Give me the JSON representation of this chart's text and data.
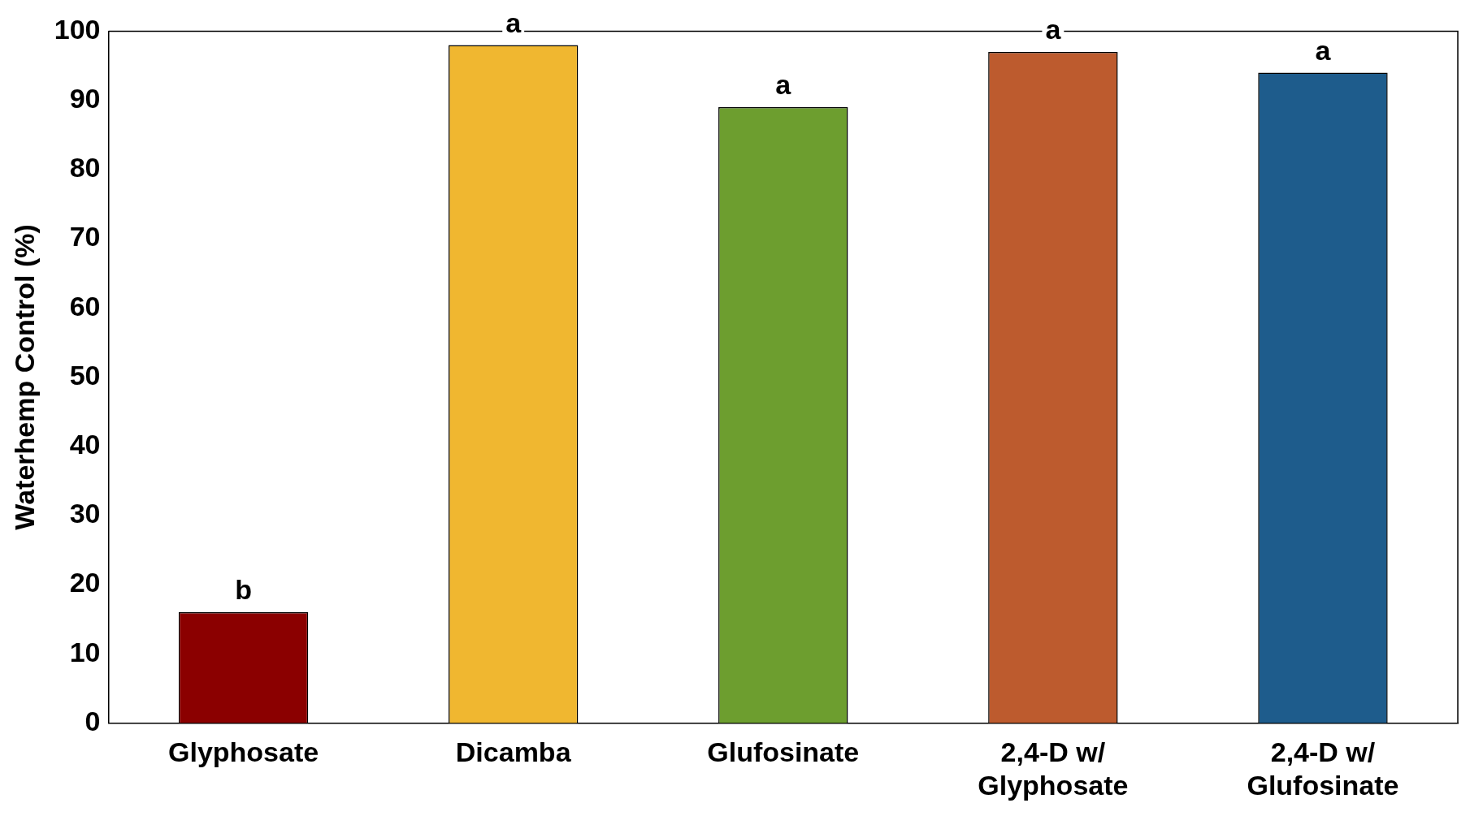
{
  "chart_data": {
    "type": "bar",
    "ylabel": "Waterhemp Control (%)",
    "categories": [
      "Glyphosate",
      "Dicamba",
      "Glufosinate",
      "2,4-D w/ Glyphosate",
      "2,4-D w/ Glufosinate"
    ],
    "values": [
      16,
      98,
      89,
      97,
      94
    ],
    "colors": [
      "#8b0000",
      "#f0b730",
      "#6d9e2f",
      "#bd5b2e",
      "#1e5c8c"
    ],
    "ylim": [
      0,
      100
    ],
    "yticks": [
      0,
      10,
      20,
      30,
      40,
      50,
      60,
      70,
      80,
      90,
      100
    ],
    "grid": false,
    "legend": false,
    "annotations": [
      {
        "text": "b",
        "x": "Glyphosate",
        "y": 16
      },
      {
        "text": "a",
        "x": "Dicamba",
        "y": 98
      },
      {
        "text": "a",
        "x": "Glufosinate",
        "y": 89
      },
      {
        "text": "a",
        "x": "2,4-D w/ Glyphosate",
        "y": 97
      },
      {
        "text": "a",
        "x": "2,4-D w/ Glufosinate",
        "y": 94
      }
    ]
  }
}
